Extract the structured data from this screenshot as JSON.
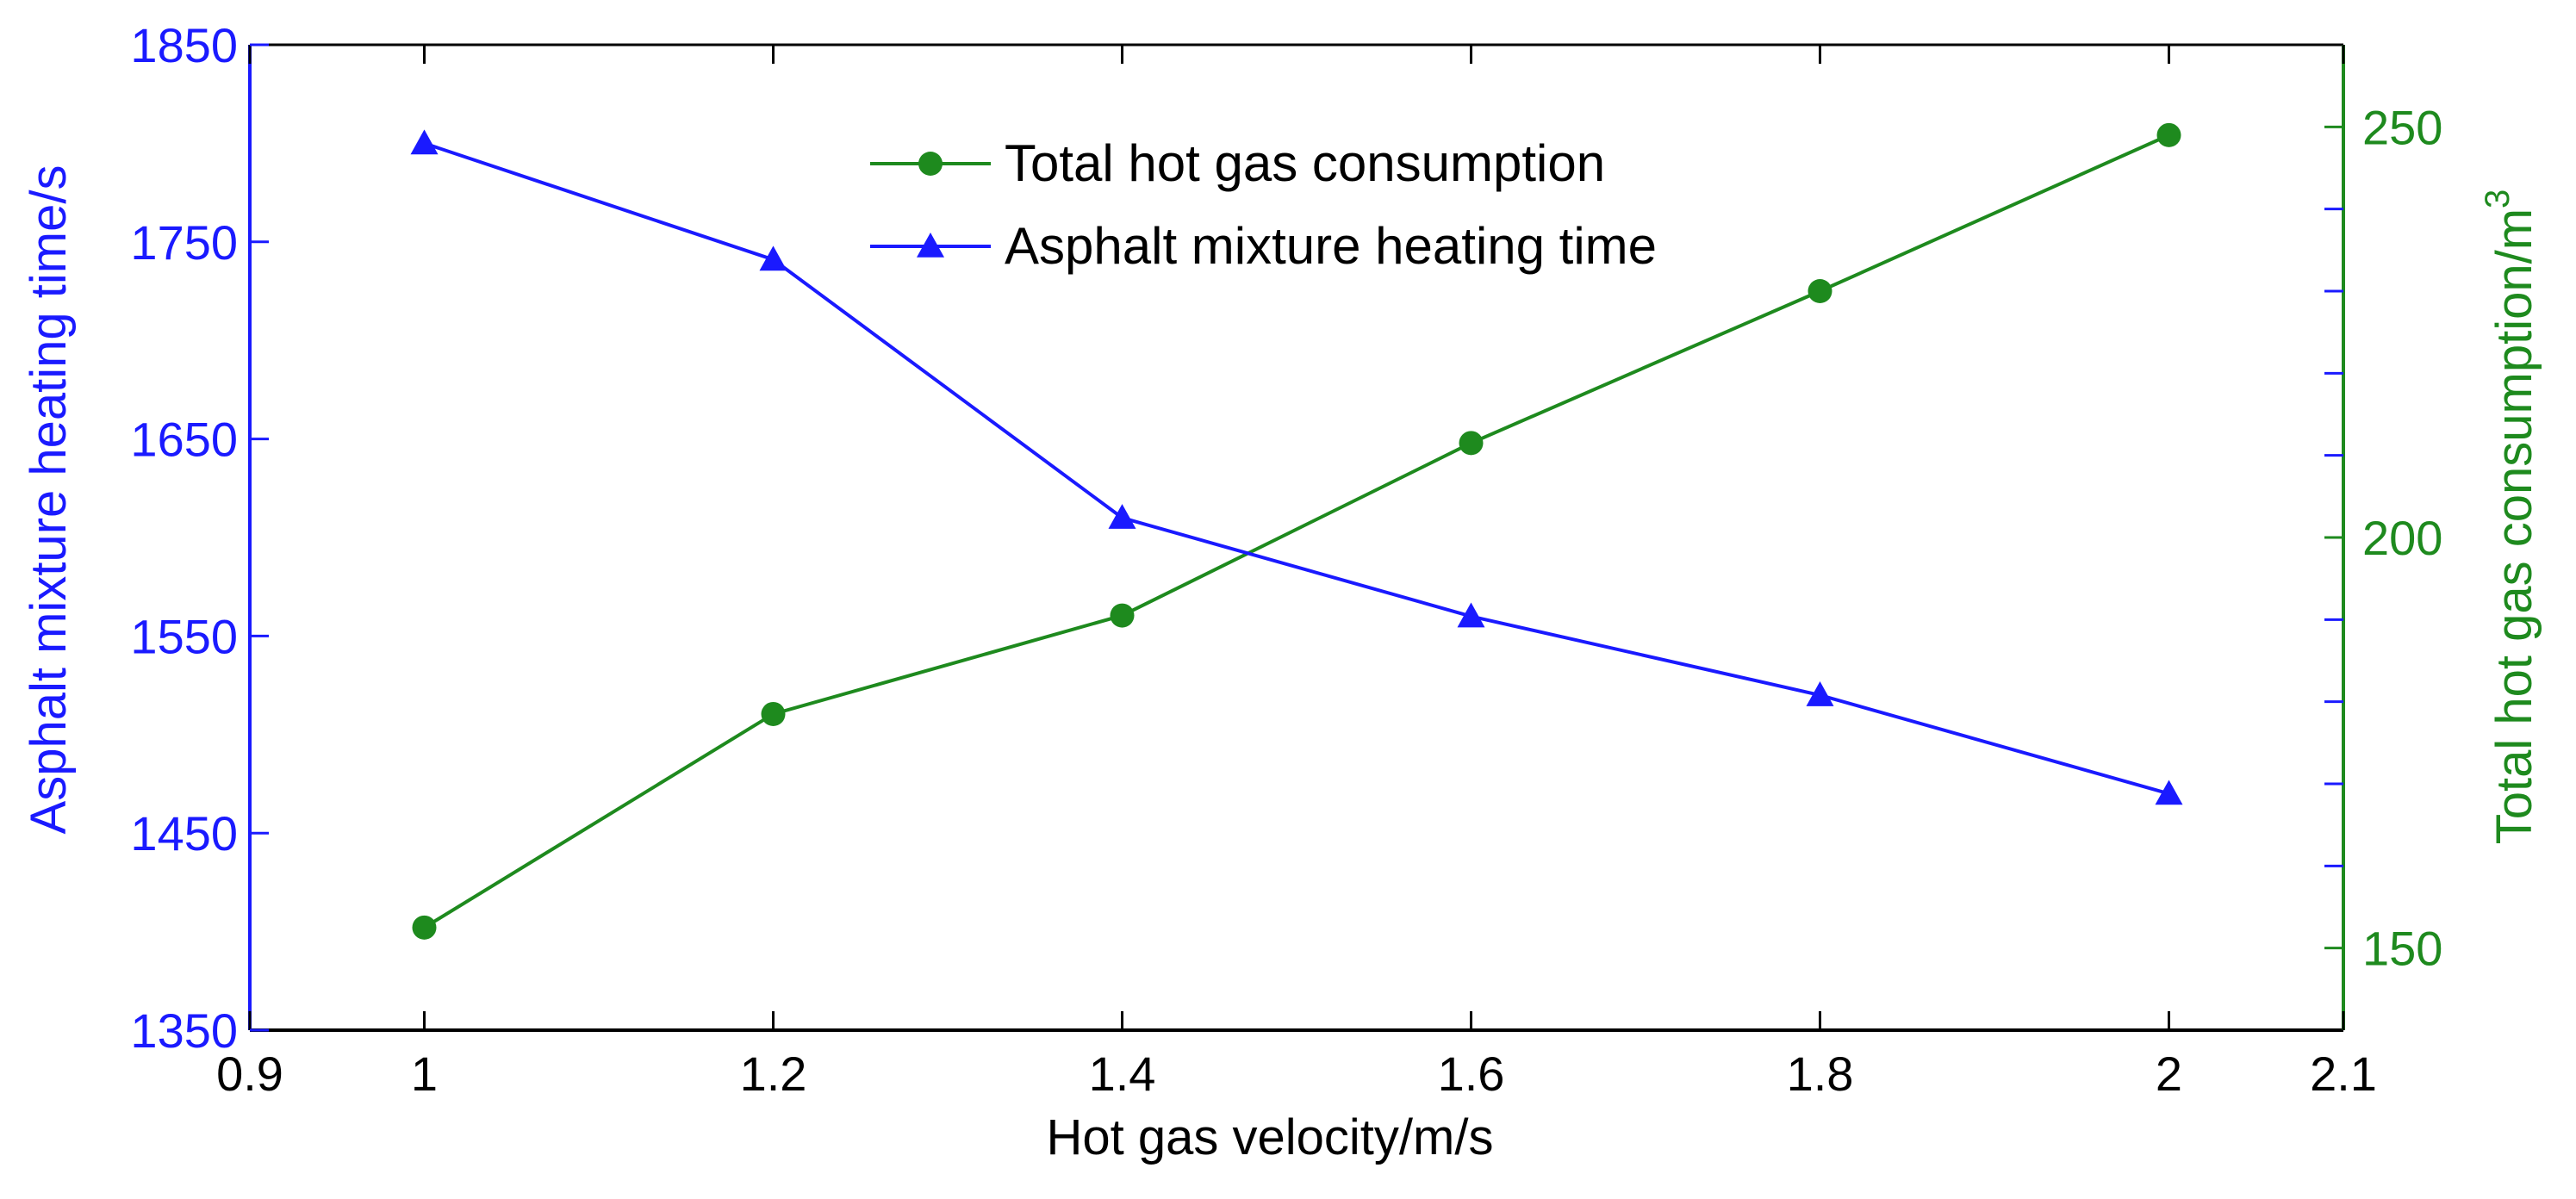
{
  "colors": {
    "left_axis": "#1a1aff",
    "right_axis": "#1e8a1e",
    "frame": "#000000",
    "heating_series": "#1a1aff",
    "gas_series": "#1e8a1e"
  },
  "chart_data": {
    "type": "line",
    "title": "",
    "xlabel": "Hot gas velocity/m/s",
    "ylabel_left": "Asphalt mixture heating time/s",
    "ylabel_right": "Total hot gas consumption/m",
    "ylabel_right_superscript": "3",
    "xlim": [
      0.9,
      2.1
    ],
    "ylim_left": [
      1350,
      1850
    ],
    "ylim_right": [
      140,
      260
    ],
    "x_ticks": [
      "0.9",
      "1",
      "1.2",
      "1.4",
      "1.6",
      "1.8",
      "2",
      "2.1"
    ],
    "x_tick_values": [
      0.9,
      1,
      1.2,
      1.4,
      1.6,
      1.8,
      2,
      2.1
    ],
    "y_left_ticks": [
      "1350",
      "1450",
      "1550",
      "1650",
      "1750",
      "1850"
    ],
    "y_left_tick_values": [
      1350,
      1450,
      1550,
      1650,
      1750,
      1850
    ],
    "y_right_ticks": [
      "150",
      "200",
      "250"
    ],
    "y_right_tick_values": [
      150,
      200,
      250
    ],
    "y_right_minor_ticks": [
      160,
      170,
      180,
      190,
      210,
      220,
      230,
      240
    ],
    "grid": false,
    "legend_position": "top-center",
    "x": [
      1,
      1.2,
      1.4,
      1.6,
      1.8,
      2
    ],
    "series": [
      {
        "name": "Total hot gas consumption",
        "axis": "right",
        "marker": "circle",
        "values": [
          152.5,
          178.5,
          190.5,
          211.5,
          230,
          249
        ]
      },
      {
        "name": "Asphalt mixture heating time",
        "axis": "left",
        "marker": "triangle",
        "values": [
          1800,
          1741,
          1610,
          1560,
          1520,
          1470
        ]
      }
    ]
  }
}
